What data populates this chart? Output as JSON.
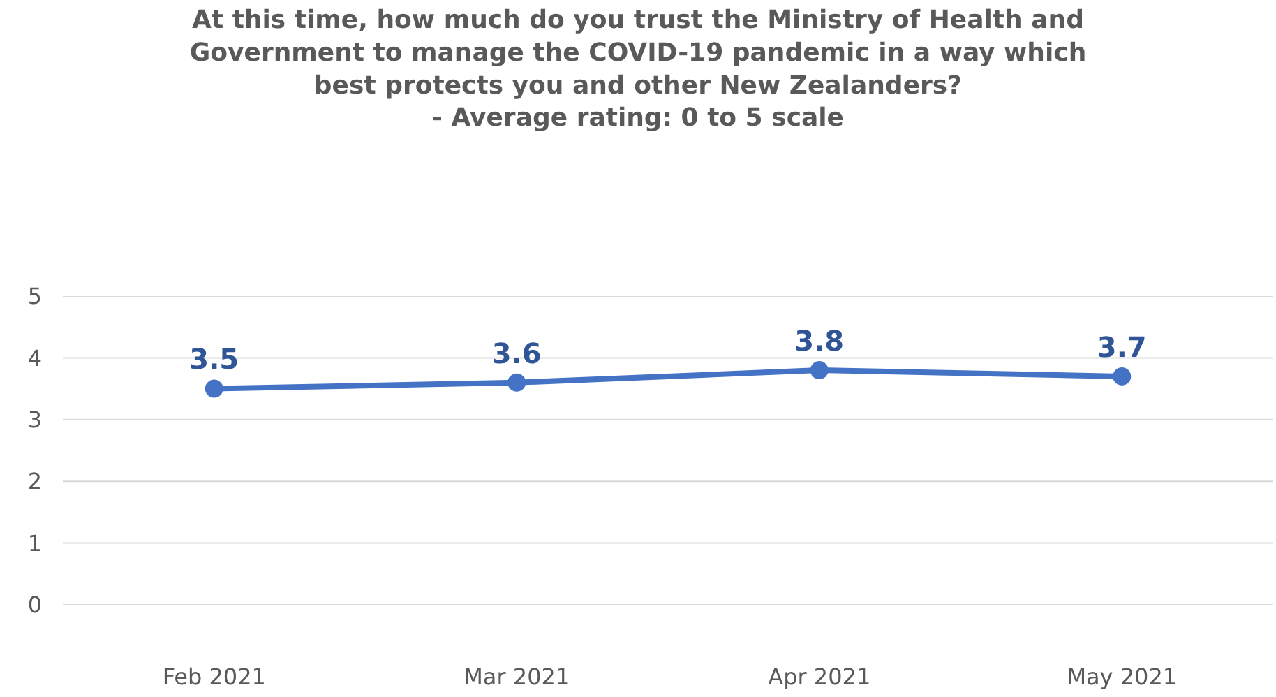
{
  "chart_data": {
    "type": "line",
    "title": "At this time, how much do you trust the Ministry of Health and\nGovernment to manage the COVID-19 pandemic in a way which\nbest protects you and other New Zealanders?\n- Average rating: 0 to 5 scale",
    "categories": [
      "Feb 2021",
      "Mar 2021",
      "Apr 2021",
      "May 2021"
    ],
    "series": [
      {
        "color": "#4472c4",
        "values": [
          3.5,
          3.6,
          3.8,
          3.7
        ]
      }
    ],
    "ylim": [
      0,
      5
    ],
    "yticks": [
      0,
      1,
      2,
      3,
      4,
      5
    ],
    "grid": "y",
    "marker": "circle",
    "line_style": "solid",
    "data_labels": true
  }
}
